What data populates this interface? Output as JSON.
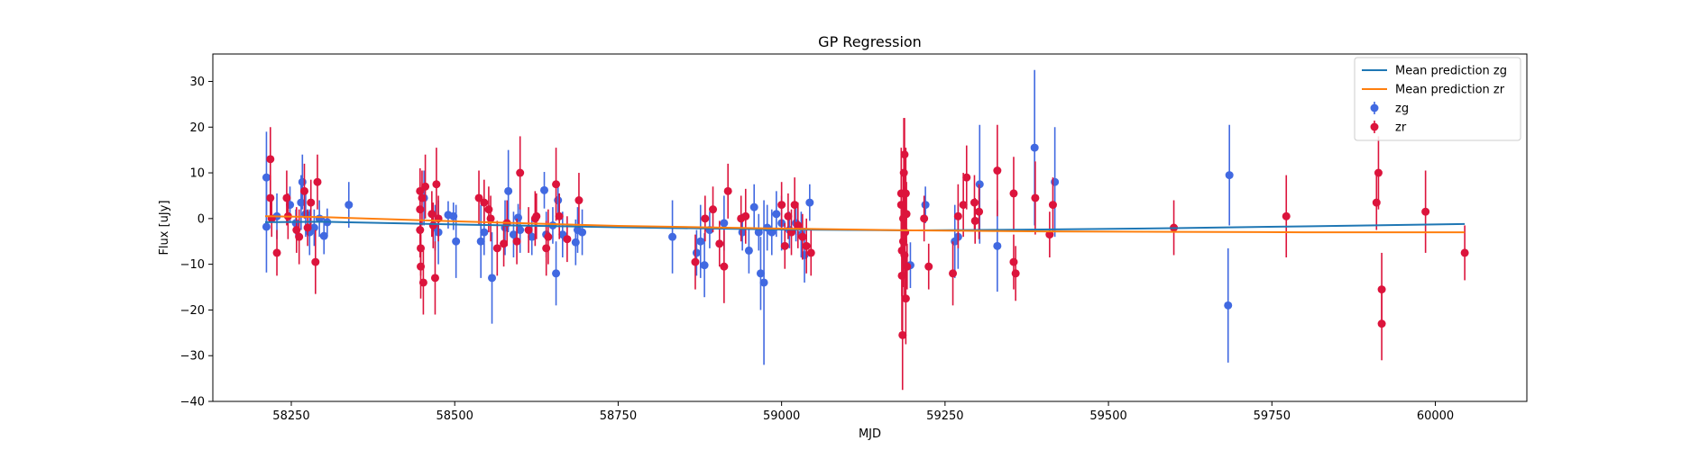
{
  "chart_data": {
    "type": "scatter",
    "title": "GP Regression",
    "xlabel": "MJD",
    "ylabel": "Flux [uJy]",
    "xlim": [
      58130,
      60140
    ],
    "ylim": [
      -40,
      36
    ],
    "xticks": [
      58250,
      58500,
      58750,
      59000,
      59250,
      59500,
      59750,
      60000
    ],
    "yticks": [
      -40,
      -30,
      -20,
      -10,
      0,
      10,
      20,
      30
    ],
    "grid": false,
    "legend_position": "top-right",
    "lines": [
      {
        "name": "Mean prediction zg",
        "color": "#1f77b4",
        "points": [
          [
            58210,
            -0.8
          ],
          [
            58300,
            -0.7
          ],
          [
            58500,
            -1.3
          ],
          [
            58750,
            -1.9
          ],
          [
            59000,
            -2.4
          ],
          [
            59200,
            -2.6
          ],
          [
            59400,
            -2.4
          ],
          [
            59600,
            -2.1
          ],
          [
            59800,
            -1.7
          ],
          [
            60045,
            -1.2
          ]
        ]
      },
      {
        "name": "Mean prediction zr",
        "color": "#ff7f0e",
        "points": [
          [
            58210,
            0.5
          ],
          [
            58300,
            0.3
          ],
          [
            58500,
            -0.6
          ],
          [
            58750,
            -1.6
          ],
          [
            59000,
            -2.2
          ],
          [
            59200,
            -2.6
          ],
          [
            59400,
            -2.8
          ],
          [
            59600,
            -2.9
          ],
          [
            59800,
            -3.0
          ],
          [
            60045,
            -3.0
          ]
        ]
      }
    ],
    "series": [
      {
        "name": "zg",
        "color": "#4169e1",
        "points": [
          [
            58212,
            9,
            10
          ],
          [
            58212,
            -1.8,
            10
          ],
          [
            58228,
            0.5,
            5
          ],
          [
            58248,
            3,
            4
          ],
          [
            58257,
            -1,
            3
          ],
          [
            58265,
            3.5,
            6
          ],
          [
            58267,
            8,
            6
          ],
          [
            58272,
            1,
            5
          ],
          [
            58278,
            -3,
            5
          ],
          [
            58285,
            -2,
            4
          ],
          [
            58293,
            0,
            4
          ],
          [
            58300,
            -3.8,
            4
          ],
          [
            58305,
            -0.8,
            3
          ],
          [
            58338,
            3,
            5
          ],
          [
            58453,
            4.5,
            6
          ],
          [
            58470,
            -2,
            5
          ],
          [
            58475,
            -3,
            7
          ],
          [
            58490,
            0.8,
            3
          ],
          [
            58498,
            0.5,
            3
          ],
          [
            58502,
            -5,
            8
          ],
          [
            58540,
            -5,
            8
          ],
          [
            58545,
            -3,
            5
          ],
          [
            58557,
            -13,
            10
          ],
          [
            58577,
            -2,
            6
          ],
          [
            58582,
            6,
            9
          ],
          [
            58590,
            -3.5,
            5
          ],
          [
            58597,
            0.2,
            3
          ],
          [
            58600,
            -2.5,
            5
          ],
          [
            58618,
            -4,
            4
          ],
          [
            58637,
            6.2,
            4
          ],
          [
            58640,
            -3.5,
            5
          ],
          [
            58650,
            -1.5,
            4
          ],
          [
            58655,
            -12,
            7
          ],
          [
            58658,
            4,
            4
          ],
          [
            58665,
            -3.5,
            5
          ],
          [
            58685,
            -5.2,
            5
          ],
          [
            58688,
            -2.5,
            5
          ],
          [
            58695,
            -3,
            5
          ],
          [
            58833,
            -4,
            8
          ],
          [
            58870,
            -7.5,
            5
          ],
          [
            58876,
            -5,
            8
          ],
          [
            58882,
            -10.2,
            7
          ],
          [
            58890,
            -2.5,
            4
          ],
          [
            58912,
            -1,
            6
          ],
          [
            58940,
            -3,
            4
          ],
          [
            58950,
            -7,
            5
          ],
          [
            58958,
            2.5,
            5
          ],
          [
            58965,
            -3,
            4
          ],
          [
            58968,
            -12,
            8
          ],
          [
            58973,
            -14,
            18
          ],
          [
            58978,
            -2,
            5
          ],
          [
            58985,
            -3,
            5
          ],
          [
            58992,
            1,
            5
          ],
          [
            59000,
            -1,
            6
          ],
          [
            59012,
            -2.5,
            4
          ],
          [
            59022,
            -1,
            4
          ],
          [
            59030,
            -3.5,
            5
          ],
          [
            59035,
            -8,
            6
          ],
          [
            59043,
            3.5,
            4
          ],
          [
            59220,
            3,
            4
          ],
          [
            59197,
            -10.2,
            5
          ],
          [
            59265,
            -5,
            8
          ],
          [
            59270,
            -4,
            7
          ],
          [
            59303,
            7.5,
            13
          ],
          [
            59330,
            -6,
            10
          ],
          [
            59387,
            15.5,
            17
          ],
          [
            59418,
            8,
            12
          ],
          [
            59685,
            9.5,
            11
          ],
          [
            59683,
            -19,
            12.5
          ]
        ]
      },
      {
        "name": "zr",
        "color": "#dc143c",
        "points": [
          [
            58218,
            13,
            7
          ],
          [
            58218,
            4.5,
            5
          ],
          [
            58220,
            0,
            4
          ],
          [
            58228,
            -7.5,
            5
          ],
          [
            58243,
            4.5,
            6
          ],
          [
            58245,
            0.5,
            5
          ],
          [
            58258,
            -2.5,
            5
          ],
          [
            58262,
            -4,
            6
          ],
          [
            58270,
            6,
            6
          ],
          [
            58275,
            -2,
            4
          ],
          [
            58280,
            3.5,
            5
          ],
          [
            58287,
            -9.5,
            7
          ],
          [
            58290,
            8,
            6
          ],
          [
            58447,
            6,
            5
          ],
          [
            58447,
            2,
            6
          ],
          [
            58447,
            -2.5,
            6
          ],
          [
            58448,
            -6.5,
            6
          ],
          [
            58448,
            -10.5,
            7
          ],
          [
            58450,
            4.5,
            6
          ],
          [
            58452,
            -14,
            7
          ],
          [
            58455,
            7,
            7
          ],
          [
            58465,
            1,
            5
          ],
          [
            58467,
            -1.5,
            5
          ],
          [
            58470,
            -13,
            8
          ],
          [
            58472,
            7.5,
            8
          ],
          [
            58475,
            0,
            5
          ],
          [
            58537,
            4.5,
            6
          ],
          [
            58545,
            3.5,
            5
          ],
          [
            58552,
            2,
            5
          ],
          [
            58555,
            0,
            5
          ],
          [
            58565,
            -6.5,
            6
          ],
          [
            58575,
            -5.5,
            5
          ],
          [
            58580,
            -1,
            5
          ],
          [
            58595,
            -5,
            5
          ],
          [
            58600,
            10,
            8
          ],
          [
            58613,
            -2.5,
            5
          ],
          [
            58623,
            0,
            6
          ],
          [
            58625,
            0.5,
            5
          ],
          [
            58640,
            -6.5,
            6
          ],
          [
            58643,
            -4,
            6
          ],
          [
            58655,
            7.5,
            8
          ],
          [
            58660,
            0.5,
            5
          ],
          [
            58672,
            -4.5,
            5
          ],
          [
            58690,
            4,
            6
          ],
          [
            58868,
            -9.5,
            6
          ],
          [
            58883,
            0,
            5
          ],
          [
            58895,
            2,
            5
          ],
          [
            58905,
            -5.5,
            5
          ],
          [
            58912,
            -10.5,
            8
          ],
          [
            58918,
            6,
            6
          ],
          [
            58938,
            0,
            5
          ],
          [
            58945,
            0.5,
            6
          ],
          [
            59000,
            3,
            5
          ],
          [
            59005,
            -6,
            5
          ],
          [
            59010,
            0.5,
            5
          ],
          [
            59015,
            -3,
            5
          ],
          [
            59020,
            3,
            6
          ],
          [
            59025,
            -1.5,
            5
          ],
          [
            59032,
            -4,
            5
          ],
          [
            59038,
            -6,
            6
          ],
          [
            59045,
            -7.5,
            5
          ],
          [
            59183,
            5.5,
            10
          ],
          [
            59183,
            3,
            10
          ],
          [
            59184,
            -7,
            10
          ],
          [
            59184,
            -12.5,
            12
          ],
          [
            59185,
            -25.5,
            12
          ],
          [
            59186,
            0,
            10
          ],
          [
            59186,
            -5,
            10
          ],
          [
            59187,
            10,
            12
          ],
          [
            59188,
            14,
            8
          ],
          [
            59188,
            -8,
            10
          ],
          [
            59189,
            -3,
            10
          ],
          [
            59190,
            5.5,
            10
          ],
          [
            59190,
            -17.5,
            10
          ],
          [
            59191,
            1,
            7
          ],
          [
            59192,
            -10.5,
            5
          ],
          [
            59218,
            0,
            5
          ],
          [
            59225,
            -10.5,
            5
          ],
          [
            59262,
            -12,
            7
          ],
          [
            59270,
            0.5,
            7
          ],
          [
            59278,
            3,
            7
          ],
          [
            59283,
            9,
            7
          ],
          [
            59295,
            3.5,
            6
          ],
          [
            59296,
            -0.5,
            5
          ],
          [
            59302,
            1.5,
            6
          ],
          [
            59330,
            10.5,
            10
          ],
          [
            59355,
            5.5,
            8
          ],
          [
            59355,
            -9.5,
            6
          ],
          [
            59358,
            -12,
            6
          ],
          [
            59388,
            4.5,
            8
          ],
          [
            59410,
            -3.5,
            5
          ],
          [
            59415,
            3,
            6
          ],
          [
            59600,
            -2,
            6
          ],
          [
            59772,
            0.5,
            9
          ],
          [
            59910,
            3.5,
            6
          ],
          [
            59913,
            10,
            8
          ],
          [
            59918,
            -15.5,
            8
          ],
          [
            59918,
            -23,
            8
          ],
          [
            59985,
            1.5,
            9
          ],
          [
            60045,
            -7.5,
            6
          ]
        ]
      }
    ]
  }
}
